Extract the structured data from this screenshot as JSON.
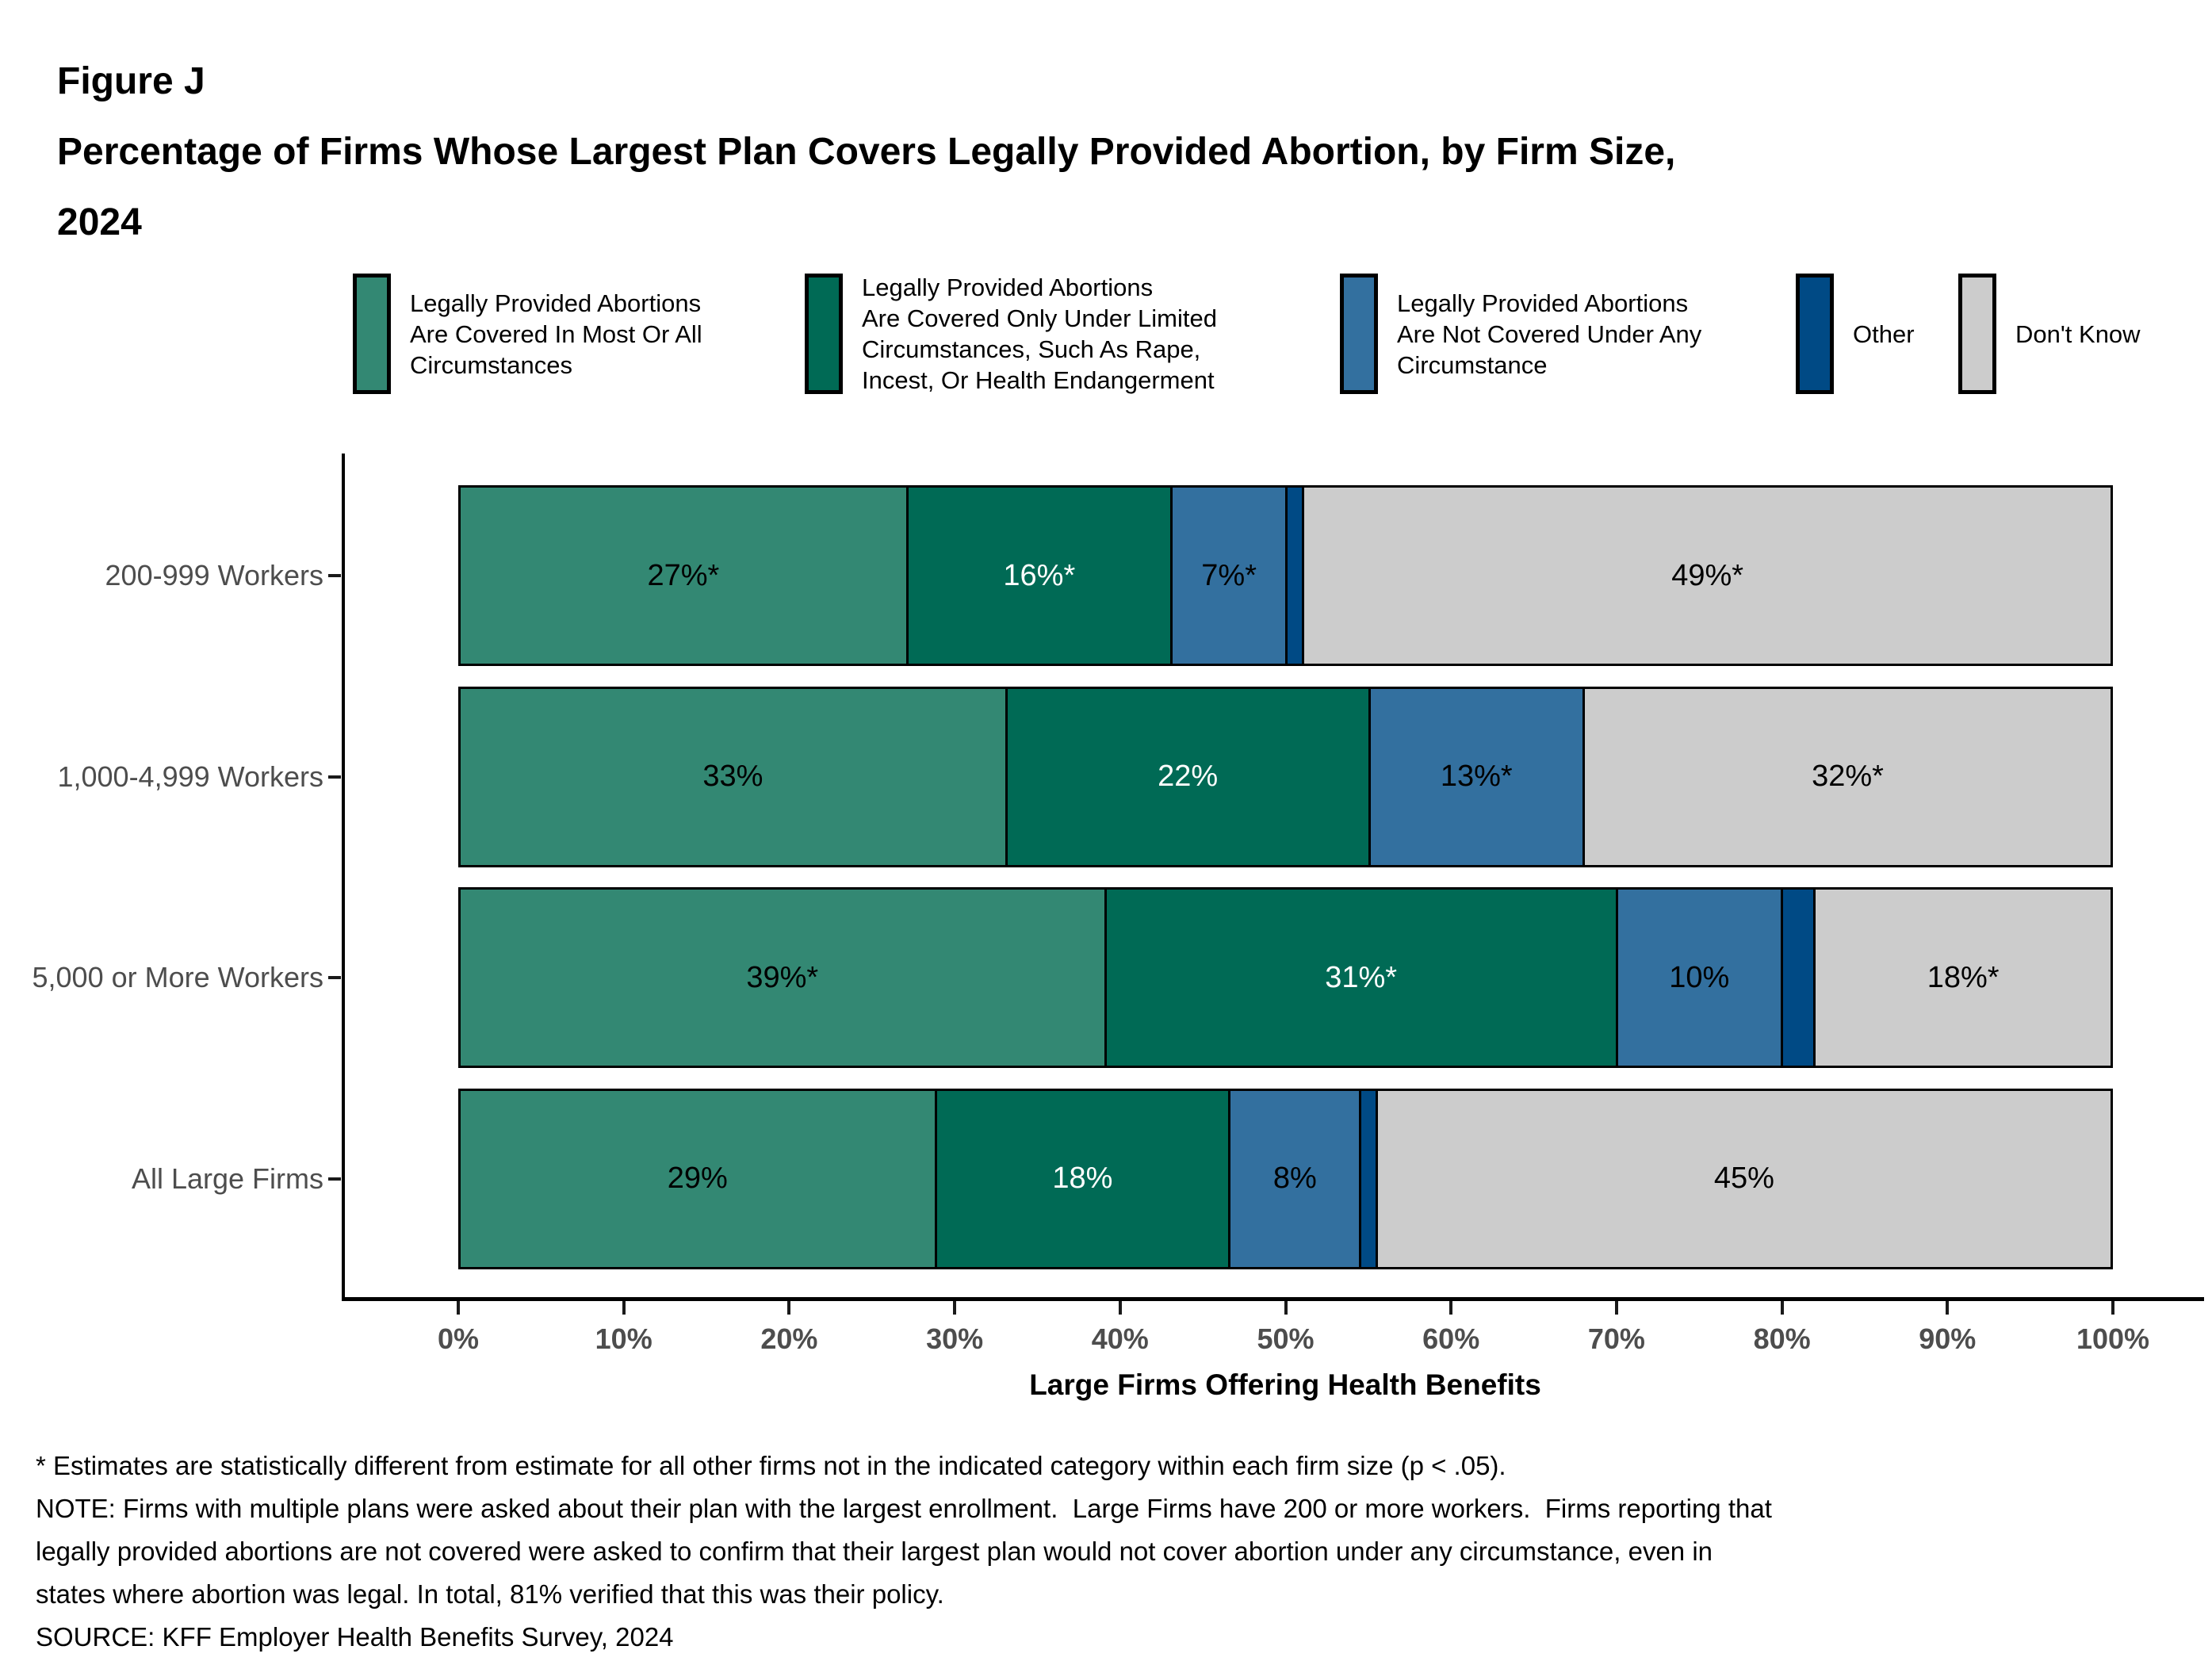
{
  "title": {
    "figure_label": "Figure J",
    "line1": "Percentage of Firms Whose Largest Plan Covers Legally Provided Abortion, by Firm Size,",
    "line2": "2024"
  },
  "chart_data": {
    "type": "bar",
    "orientation": "horizontal",
    "stacked": true,
    "unit": "percent",
    "xlabel": "Large Firms Offering Health Benefits",
    "x_ticks": [
      "0%",
      "10%",
      "20%",
      "30%",
      "40%",
      "50%",
      "60%",
      "70%",
      "80%",
      "90%",
      "100%"
    ],
    "xlim": [
      0,
      100
    ],
    "legend_position": "top",
    "categories": [
      "200-999 Workers",
      "1,000-4,999 Workers",
      "5,000 or More Workers",
      "All Large Firms"
    ],
    "series": [
      {
        "name": "Legally Provided Abortions Are Covered In Most Or All Circumstances",
        "legend_lines": [
          "Legally Provided Abortions",
          "Are Covered In Most Or All",
          "Circumstances"
        ],
        "color": "#338873",
        "label_color": "#000000",
        "values": [
          27,
          33,
          39,
          29
        ],
        "labels": [
          "27%*",
          "33%",
          "39%*",
          "29%"
        ]
      },
      {
        "name": "Legally Provided Abortions Are Covered Only Under Limited Circumstances, Such As Rape, Incest, Or Health Endangerment",
        "legend_lines": [
          "Legally Provided Abortions",
          "Are Covered Only Under Limited",
          "Circumstances, Such As Rape,",
          "Incest, Or Health Endangerment"
        ],
        "color": "#006A55",
        "label_color": "#ffffff",
        "values": [
          16,
          22,
          31,
          18
        ],
        "labels": [
          "16%*",
          "22%",
          "31%*",
          "18%"
        ]
      },
      {
        "name": "Legally Provided Abortions Are Not Covered Under Any Circumstance",
        "legend_lines": [
          "Legally Provided Abortions",
          "Are Not Covered Under Any",
          "Circumstance"
        ],
        "color": "#33709F",
        "label_color": "#000000",
        "values": [
          7,
          13,
          10,
          8
        ],
        "labels": [
          "7%*",
          "13%*",
          "10%",
          "8%"
        ]
      },
      {
        "name": "Other",
        "legend_lines": [
          "Other"
        ],
        "color": "#004A85",
        "label_color": "#ffffff",
        "values": [
          1,
          0,
          2,
          1
        ],
        "labels": [
          "",
          "",
          "",
          ""
        ]
      },
      {
        "name": "Don't Know",
        "legend_lines": [
          "Don't Know"
        ],
        "color": "#CCCCCC",
        "label_color": "#000000",
        "values": [
          49,
          32,
          18,
          45
        ],
        "labels": [
          "49%*",
          "32%*",
          "18%*",
          "45%"
        ]
      }
    ]
  },
  "footnotes": {
    "lines": [
      "* Estimates are statistically different from estimate for all other firms not in the indicated category within each firm size (p < .05).",
      "NOTE: Firms with multiple plans were asked about their plan with the largest enrollment.  Large Firms have 200 or more workers.  Firms reporting that",
      "legally provided abortions are not covered were asked to confirm that their largest plan would not cover abortion under any circumstance, even in",
      "states where abortion was legal. In total, 81% verified that this was their policy.",
      "SOURCE: KFF Employer Health Benefits Survey, 2024"
    ]
  }
}
